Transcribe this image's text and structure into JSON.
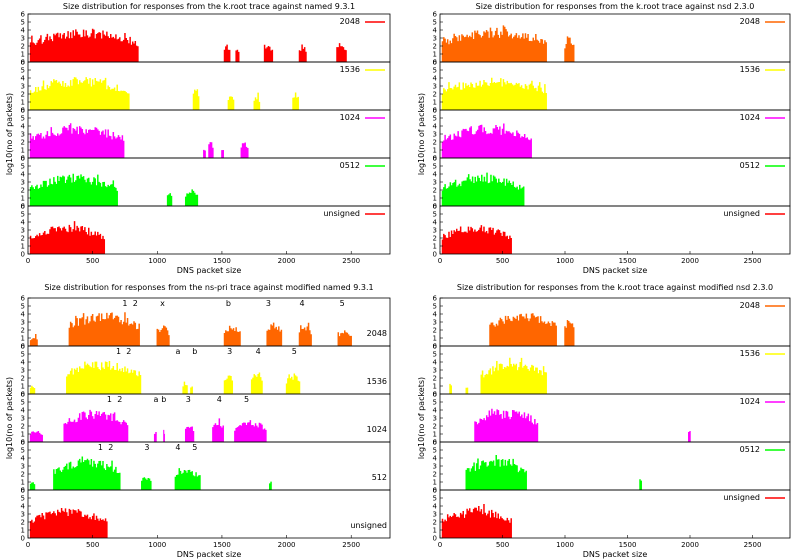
{
  "chart_data": [
    {
      "type": "histogram-stack",
      "title": "Size distribution for responses from the k.root trace against named 9.3.1",
      "xlabel": "DNS packet size",
      "ylabel": "log10(no of packets)",
      "xlim": [
        0,
        2800
      ],
      "ylim": [
        0,
        6
      ],
      "xticks": [
        "0",
        "500",
        "1000",
        "1500",
        "2000",
        "2500"
      ],
      "yticks": [
        "0",
        "1",
        "2",
        "3",
        "4",
        "5",
        "6"
      ],
      "annotation_mode": "legend",
      "series": [
        {
          "name": "2048",
          "color": "#ff0000",
          "ranges": [
            [
              20,
              860,
              4.2
            ],
            [
              1520,
              1570,
              2.2
            ],
            [
              1610,
              1640,
              1.8
            ],
            [
              1830,
              1900,
              2.3
            ],
            [
              2100,
              2160,
              2.2
            ],
            [
              2390,
              2470,
              2.4
            ]
          ]
        },
        {
          "name": "1536",
          "color": "#ffff00",
          "ranges": [
            [
              20,
              790,
              4.2
            ],
            [
              1280,
              1330,
              2.8
            ],
            [
              1550,
              1600,
              2.2
            ],
            [
              1750,
              1800,
              1.8
            ],
            [
              2050,
              2100,
              2.2
            ]
          ]
        },
        {
          "name": "1024",
          "color": "#ff00ff",
          "ranges": [
            [
              20,
              750,
              4.2
            ],
            [
              1400,
              1440,
              2.2
            ],
            [
              1650,
              1710,
              2.2
            ],
            [
              1500,
              1520,
              1.2
            ],
            [
              1360,
              1380,
              1.2
            ]
          ]
        },
        {
          "name": "0512",
          "color": "#00ff00",
          "ranges": [
            [
              20,
              700,
              4.0
            ],
            [
              1080,
              1120,
              2.0
            ],
            [
              1220,
              1320,
              2.2
            ]
          ]
        },
        {
          "name": "unsigned",
          "color": "#ff0000",
          "ranges": [
            [
              20,
              600,
              3.8
            ]
          ]
        }
      ],
      "annotations": []
    },
    {
      "type": "histogram-stack",
      "title": "Size distribution for responses from the k.root trace against nsd 2.3.0",
      "xlabel": "DNS packet size",
      "ylabel": "log10(no of packets)",
      "xlim": [
        0,
        2800
      ],
      "ylim": [
        0,
        6
      ],
      "xticks": [
        "0",
        "500",
        "1000",
        "1500",
        "2000",
        "2500"
      ],
      "yticks": [
        "0",
        "1",
        "2",
        "3",
        "4",
        "5",
        "6"
      ],
      "annotation_mode": "legend",
      "series": [
        {
          "name": "2048",
          "color": "#ff6600",
          "ranges": [
            [
              20,
              860,
              4.3
            ],
            [
              1000,
              1080,
              3.4
            ]
          ]
        },
        {
          "name": "1536",
          "color": "#ffff00",
          "ranges": [
            [
              20,
              860,
              4.2
            ]
          ]
        },
        {
          "name": "1024",
          "color": "#ff00ff",
          "ranges": [
            [
              20,
              740,
              4.2
            ]
          ]
        },
        {
          "name": "0512",
          "color": "#00ff00",
          "ranges": [
            [
              20,
              680,
              4.0
            ]
          ]
        },
        {
          "name": "unsigned",
          "color": "#ff0000",
          "ranges": [
            [
              20,
              580,
              3.8
            ]
          ]
        }
      ],
      "annotations": []
    },
    {
      "type": "histogram-stack",
      "title": "Size distribution for responses from the ns-pri trace against modified named 9.3.1",
      "xlabel": "DNS packet size",
      "ylabel": "log10(no of packets)",
      "xlim": [
        0,
        2800
      ],
      "ylim": [
        0,
        6
      ],
      "xticks": [
        "0",
        "500",
        "1000",
        "1500",
        "2000",
        "2500"
      ],
      "yticks": [
        "0",
        "1",
        "2",
        "3",
        "4",
        "5",
        "6"
      ],
      "annotation_mode": "label",
      "series": [
        {
          "name": "2048",
          "color": "#ff6600",
          "ranges": [
            [
              20,
              80,
              1.2
            ],
            [
              320,
              870,
              4.3
            ],
            [
              1000,
              1100,
              2.6
            ],
            [
              1520,
              1650,
              2.7
            ],
            [
              1850,
              1970,
              3.1
            ],
            [
              2100,
              2200,
              2.6
            ],
            [
              2400,
              2510,
              2.2
            ]
          ]
        },
        {
          "name": "1536",
          "color": "#ffff00",
          "ranges": [
            [
              20,
              60,
              1.2
            ],
            [
              300,
              880,
              4.2
            ],
            [
              1200,
              1240,
              1.6
            ],
            [
              1260,
              1280,
              1.2
            ],
            [
              1520,
              1590,
              2.6
            ],
            [
              1730,
              1820,
              3.0
            ],
            [
              2000,
              2110,
              2.5
            ]
          ]
        },
        {
          "name": "1024",
          "color": "#ff00ff",
          "ranges": [
            [
              20,
              120,
              1.6
            ],
            [
              280,
              780,
              4.1
            ],
            [
              980,
              1000,
              1.6
            ],
            [
              1050,
              1060,
              1.2
            ],
            [
              1220,
              1290,
              2.4
            ],
            [
              1430,
              1520,
              2.9
            ],
            [
              1600,
              1850,
              2.8
            ]
          ]
        },
        {
          "name": "512",
          "color": "#00ff00",
          "ranges": [
            [
              20,
              60,
              1.2
            ],
            [
              200,
              720,
              4.0
            ],
            [
              880,
              960,
              1.8
            ],
            [
              1140,
              1340,
              2.8
            ],
            [
              1870,
              1890,
              1.2
            ]
          ]
        },
        {
          "name": "unsigned",
          "color": "#ff0000",
          "ranges": [
            [
              20,
              620,
              3.8
            ]
          ]
        }
      ],
      "annotations": [
        {
          "panel": 0,
          "x": 750,
          "y": 5.4,
          "text": "1"
        },
        {
          "panel": 0,
          "x": 830,
          "y": 5.4,
          "text": "2"
        },
        {
          "panel": 0,
          "x": 1040,
          "y": 5.4,
          "text": "x"
        },
        {
          "panel": 0,
          "x": 1550,
          "y": 5.4,
          "text": "b"
        },
        {
          "panel": 0,
          "x": 1860,
          "y": 5.4,
          "text": "3"
        },
        {
          "panel": 0,
          "x": 2120,
          "y": 5.4,
          "text": "4"
        },
        {
          "panel": 0,
          "x": 2430,
          "y": 5.4,
          "text": "5"
        },
        {
          "panel": 1,
          "x": 700,
          "y": 5.4,
          "text": "1"
        },
        {
          "panel": 1,
          "x": 780,
          "y": 5.4,
          "text": "2"
        },
        {
          "panel": 1,
          "x": 1160,
          "y": 5.4,
          "text": "a"
        },
        {
          "panel": 1,
          "x": 1290,
          "y": 5.4,
          "text": "b"
        },
        {
          "panel": 1,
          "x": 1560,
          "y": 5.4,
          "text": "3"
        },
        {
          "panel": 1,
          "x": 1780,
          "y": 5.4,
          "text": "4"
        },
        {
          "panel": 1,
          "x": 2060,
          "y": 5.4,
          "text": "5"
        },
        {
          "panel": 2,
          "x": 630,
          "y": 5.4,
          "text": "1"
        },
        {
          "panel": 2,
          "x": 710,
          "y": 5.4,
          "text": "2"
        },
        {
          "panel": 2,
          "x": 990,
          "y": 5.4,
          "text": "a"
        },
        {
          "panel": 2,
          "x": 1050,
          "y": 5.4,
          "text": "b"
        },
        {
          "panel": 2,
          "x": 1240,
          "y": 5.4,
          "text": "3"
        },
        {
          "panel": 2,
          "x": 1480,
          "y": 5.4,
          "text": "4"
        },
        {
          "panel": 2,
          "x": 1690,
          "y": 5.4,
          "text": "5"
        },
        {
          "panel": 3,
          "x": 560,
          "y": 5.4,
          "text": "1"
        },
        {
          "panel": 3,
          "x": 640,
          "y": 5.4,
          "text": "2"
        },
        {
          "panel": 3,
          "x": 920,
          "y": 5.4,
          "text": "3"
        },
        {
          "panel": 3,
          "x": 1160,
          "y": 5.4,
          "text": "4"
        },
        {
          "panel": 3,
          "x": 1290,
          "y": 5.4,
          "text": "5"
        }
      ]
    },
    {
      "type": "histogram-stack",
      "title": "Size distribution for responses from the k.root trace against modified nsd 2.3.0",
      "xlabel": "DNS packet size",
      "ylabel": "log10(no of packets)",
      "xlim": [
        0,
        2800
      ],
      "ylim": [
        0,
        6
      ],
      "xticks": [
        "0",
        "500",
        "1000",
        "1500",
        "2000",
        "2500"
      ],
      "yticks": [
        "0",
        "1",
        "2",
        "3",
        "4",
        "5",
        "6"
      ],
      "annotation_mode": "legend",
      "series": [
        {
          "name": "2048",
          "color": "#ff6600",
          "ranges": [
            [
              400,
              940,
              4.3
            ],
            [
              1000,
              1080,
              3.6
            ]
          ]
        },
        {
          "name": "1536",
          "color": "#ffff00",
          "ranges": [
            [
              80,
              100,
              1.5
            ],
            [
              330,
              860,
              4.2
            ],
            [
              210,
              230,
              1.2
            ]
          ]
        },
        {
          "name": "1024",
          "color": "#ff00ff",
          "ranges": [
            [
              280,
              790,
              4.1
            ],
            [
              1990,
              2010,
              1.6
            ]
          ]
        },
        {
          "name": "0512",
          "color": "#00ff00",
          "ranges": [
            [
              210,
              700,
              4.0
            ],
            [
              1600,
              1620,
              1.6
            ]
          ]
        },
        {
          "name": "unsigned",
          "color": "#ff0000",
          "ranges": [
            [
              20,
              580,
              3.8
            ]
          ]
        }
      ],
      "annotations": []
    }
  ]
}
